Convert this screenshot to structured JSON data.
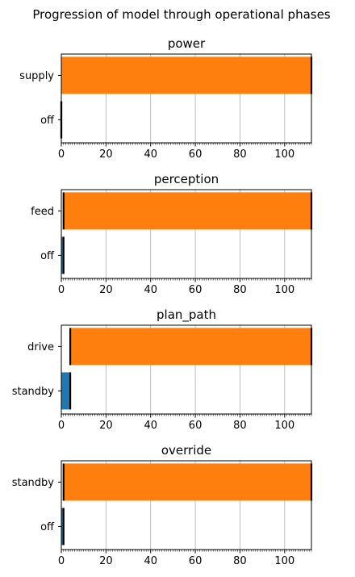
{
  "figure_title": "Progression of model through operational phases",
  "colors": {
    "orange": "#ff7f0e",
    "blue": "#1f77b4",
    "grid": "#b0b0b0"
  },
  "chart_data": [
    {
      "type": "bar",
      "orientation": "horizontal",
      "title": "power",
      "categories": [
        "supply",
        "off"
      ],
      "bars": [
        {
          "category": "supply",
          "start": 0,
          "end": 112,
          "color": "#ff7f0e"
        },
        {
          "category": "off",
          "start": 0,
          "end": 0,
          "color": "#1f77b4"
        }
      ],
      "xlim": [
        0,
        112
      ],
      "xticks": [
        0,
        20,
        40,
        60,
        80,
        100
      ],
      "grid": true
    },
    {
      "type": "bar",
      "orientation": "horizontal",
      "title": "perception",
      "categories": [
        "feed",
        "off"
      ],
      "bars": [
        {
          "category": "feed",
          "start": 1,
          "end": 112,
          "color": "#ff7f0e"
        },
        {
          "category": "off",
          "start": 0,
          "end": 1,
          "color": "#1f77b4"
        }
      ],
      "xlim": [
        0,
        112
      ],
      "xticks": [
        0,
        20,
        40,
        60,
        80,
        100
      ],
      "grid": true
    },
    {
      "type": "bar",
      "orientation": "horizontal",
      "title": "plan_path",
      "categories": [
        "drive",
        "standby"
      ],
      "bars": [
        {
          "category": "drive",
          "start": 4,
          "end": 112,
          "color": "#ff7f0e"
        },
        {
          "category": "standby",
          "start": 0,
          "end": 4,
          "color": "#1f77b4"
        }
      ],
      "xlim": [
        0,
        112
      ],
      "xticks": [
        0,
        20,
        40,
        60,
        80,
        100
      ],
      "grid": true
    },
    {
      "type": "bar",
      "orientation": "horizontal",
      "title": "override",
      "categories": [
        "standby",
        "off"
      ],
      "bars": [
        {
          "category": "standby",
          "start": 1,
          "end": 112,
          "color": "#ff7f0e"
        },
        {
          "category": "off",
          "start": 0,
          "end": 1,
          "color": "#1f77b4"
        }
      ],
      "xlim": [
        0,
        112
      ],
      "xticks": [
        0,
        20,
        40,
        60,
        80,
        100
      ],
      "grid": true
    }
  ]
}
